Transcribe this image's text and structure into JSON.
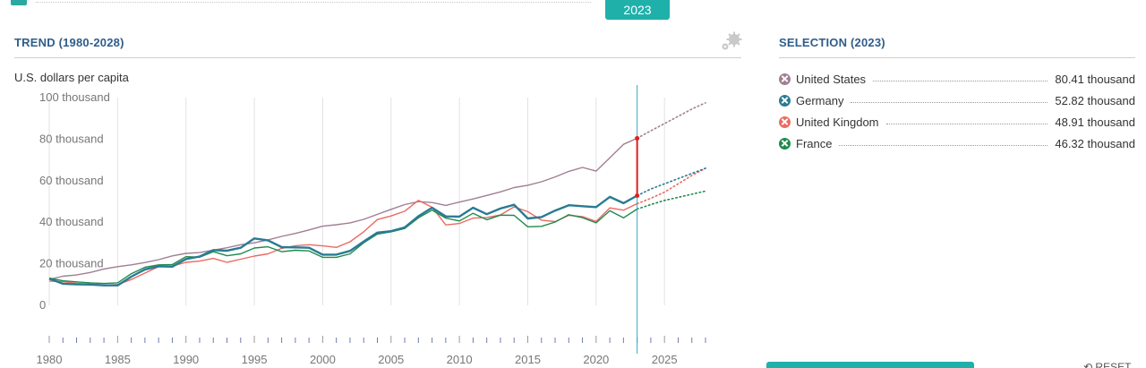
{
  "selected_year_badge": "2023",
  "left_panel": {
    "title": "TREND (1980-2028)",
    "unit": "U.S. dollars per capita"
  },
  "right_panel": {
    "title": "SELECTION (2023)",
    "legend": [
      {
        "name": "United States",
        "value": "80.41 thousand",
        "color": "#a07f93"
      },
      {
        "name": "Germany",
        "value": "52.82 thousand",
        "color": "#2a7a93"
      },
      {
        "name": "United Kingdom",
        "value": "48.91 thousand",
        "color": "#ec6a63"
      },
      {
        "name": "France",
        "value": "46.32 thousand",
        "color": "#1f8a4d"
      }
    ]
  },
  "reset_label": "RESET",
  "icons": {
    "gear": "gear-icon",
    "reset": "reset-icon",
    "legend_marker": "x-circle-icon"
  },
  "chart_data": {
    "type": "line",
    "ylabel": "U.S. dollars per capita",
    "ylim": [
      0,
      100000
    ],
    "yticks": [
      0,
      20000,
      40000,
      60000,
      80000,
      100000
    ],
    "ytick_labels": [
      "0",
      "20 thousand",
      "40 thousand",
      "60 thousand",
      "80 thousand",
      "100 thousand"
    ],
    "xlim": [
      1980,
      2028
    ],
    "xticks": [
      1980,
      1985,
      1990,
      1995,
      2000,
      2005,
      2010,
      2015,
      2020,
      2025
    ],
    "selected_x": 2023,
    "projection_start": 2023,
    "grid": "vertical",
    "x": [
      1980,
      1981,
      1982,
      1983,
      1984,
      1985,
      1986,
      1987,
      1988,
      1989,
      1990,
      1991,
      1992,
      1993,
      1994,
      1995,
      1996,
      1997,
      1998,
      1999,
      2000,
      2001,
      2002,
      2003,
      2004,
      2005,
      2006,
      2007,
      2008,
      2009,
      2010,
      2011,
      2012,
      2013,
      2014,
      2015,
      2016,
      2017,
      2018,
      2019,
      2020,
      2021,
      2022,
      2023,
      2024,
      2025,
      2026,
      2027,
      2028
    ],
    "series": [
      {
        "name": "United States",
        "color": "#a07f93",
        "values": [
          12500,
          14000,
          14600,
          15800,
          17500,
          18600,
          19500,
          20600,
          22000,
          23800,
          25000,
          25400,
          26600,
          27700,
          29200,
          30100,
          31500,
          33200,
          34600,
          36300,
          38100,
          38800,
          39700,
          41400,
          43800,
          46200,
          48500,
          49900,
          49500,
          48100,
          49700,
          51200,
          52900,
          54600,
          56700,
          57800,
          59500,
          61800,
          64500,
          66400,
          64600,
          71000,
          77500,
          80410,
          84000,
          87500,
          91000,
          94500,
          97500
        ]
      },
      {
        "name": "Germany",
        "color": "#2a7a93",
        "values": [
          12800,
          10400,
          10100,
          10000,
          9600,
          9600,
          13800,
          17300,
          18800,
          18600,
          22300,
          23500,
          26600,
          26300,
          27700,
          32200,
          31300,
          28000,
          27900,
          27700,
          24400,
          24400,
          26200,
          30700,
          35000,
          35700,
          37500,
          42900,
          47000,
          42800,
          42700,
          47000,
          43900,
          46600,
          48400,
          41800,
          42500,
          45600,
          48200,
          47700,
          47300,
          52200,
          49200,
          52820,
          56000,
          58500,
          61000,
          63500,
          66000
        ]
      },
      {
        "name": "United Kingdom",
        "color": "#ec6a63",
        "values": [
          11700,
          11400,
          10600,
          10200,
          9800,
          10000,
          12400,
          15500,
          18600,
          18900,
          20700,
          21300,
          22600,
          20700,
          22200,
          23700,
          24800,
          27400,
          28700,
          29200,
          28600,
          27900,
          30600,
          35400,
          41300,
          43000,
          45300,
          50500,
          47200,
          38700,
          39400,
          42000,
          42300,
          43500,
          47400,
          45100,
          41000,
          40300,
          43300,
          42700,
          40400,
          46900,
          45800,
          48910,
          51500,
          54500,
          58500,
          62500,
          66000
        ]
      },
      {
        "name": "France",
        "color": "#1f8a4d",
        "values": [
          13100,
          11800,
          11300,
          10800,
          10500,
          10800,
          15200,
          18300,
          19500,
          19600,
          23400,
          23200,
          25800,
          23900,
          24800,
          27600,
          28200,
          25800,
          26500,
          26200,
          23100,
          23100,
          24800,
          30100,
          34300,
          35400,
          37000,
          42100,
          45800,
          42000,
          40600,
          44300,
          41200,
          43400,
          43300,
          37800,
          38000,
          40100,
          43600,
          42200,
          39700,
          45500,
          42100,
          46320,
          48500,
          50500,
          52000,
          53500,
          55000
        ]
      }
    ]
  }
}
